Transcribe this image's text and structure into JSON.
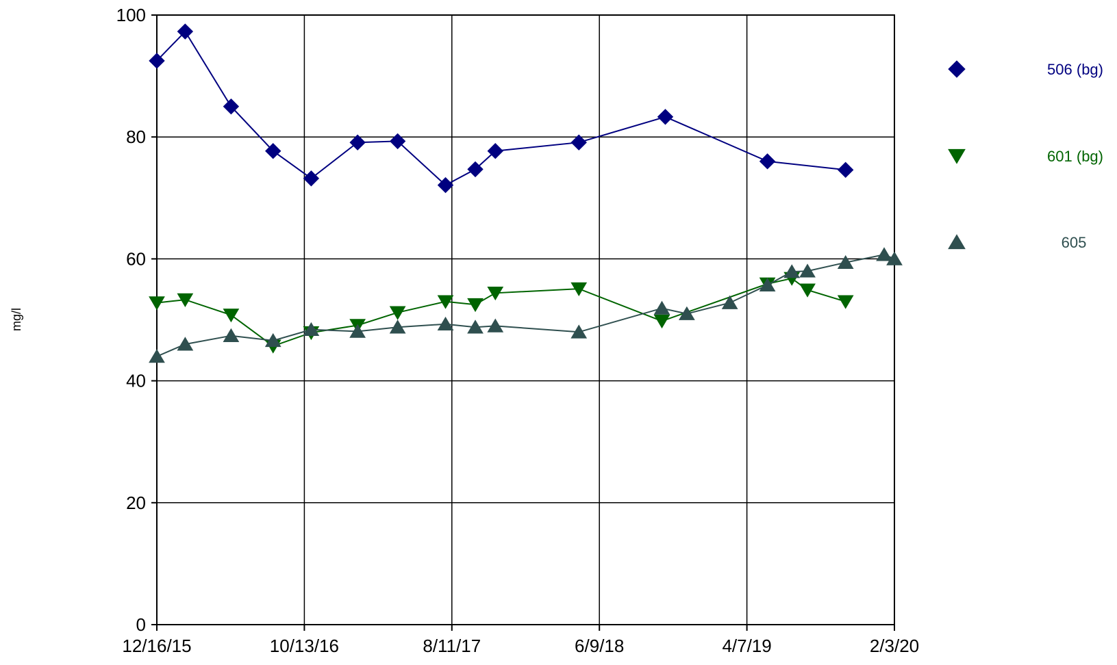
{
  "chart_data": {
    "type": "line",
    "title": "",
    "xlabel": "",
    "ylabel": "mg/l",
    "xlim": [
      "2015-12-16",
      "2020-02-03"
    ],
    "ylim": [
      0,
      100
    ],
    "x_ticks": [
      {
        "date": "2015-12-16",
        "label": "12/16/15"
      },
      {
        "date": "2016-10-13",
        "label": "10/13/16"
      },
      {
        "date": "2017-08-11",
        "label": "8/11/17"
      },
      {
        "date": "2018-06-09",
        "label": "6/9/18"
      },
      {
        "date": "2019-04-07",
        "label": "4/7/19"
      },
      {
        "date": "2020-02-03",
        "label": "2/3/20"
      }
    ],
    "y_ticks": [
      0,
      20,
      40,
      60,
      80,
      100
    ],
    "grid": true,
    "legend_position": "right",
    "series": [
      {
        "name": "506 (bg)",
        "color": "#000080",
        "marker": "diamond",
        "points": [
          {
            "x": "2015-12-16",
            "y": 92.5
          },
          {
            "x": "2016-02-12",
            "y": 97.3
          },
          {
            "x": "2016-05-16",
            "y": 85.0
          },
          {
            "x": "2016-08-10",
            "y": 77.7
          },
          {
            "x": "2016-10-27",
            "y": 73.2
          },
          {
            "x": "2017-01-30",
            "y": 79.1
          },
          {
            "x": "2017-04-22",
            "y": 79.3
          },
          {
            "x": "2017-07-29",
            "y": 72.1
          },
          {
            "x": "2017-09-28",
            "y": 74.7
          },
          {
            "x": "2017-11-08",
            "y": 77.7
          },
          {
            "x": "2018-04-28",
            "y": 79.1
          },
          {
            "x": "2018-10-22",
            "y": 83.3
          },
          {
            "x": "2019-05-19",
            "y": 76.0
          },
          {
            "x": "2019-10-26",
            "y": 74.6
          }
        ]
      },
      {
        "name": "601 (bg)",
        "color": "#006400",
        "marker": "triangle-down",
        "points": [
          {
            "x": "2015-12-16",
            "y": 52.8
          },
          {
            "x": "2016-02-12",
            "y": 53.3
          },
          {
            "x": "2016-05-16",
            "y": 50.8
          },
          {
            "x": "2016-08-10",
            "y": 45.7
          },
          {
            "x": "2016-10-27",
            "y": 47.9
          },
          {
            "x": "2017-01-30",
            "y": 49.1
          },
          {
            "x": "2017-04-22",
            "y": 51.2
          },
          {
            "x": "2017-07-29",
            "y": 53.0
          },
          {
            "x": "2017-09-28",
            "y": 52.5
          },
          {
            "x": "2017-11-08",
            "y": 54.4
          },
          {
            "x": "2018-04-28",
            "y": 55.1
          },
          {
            "x": "2018-10-15",
            "y": 49.8
          },
          {
            "x": "2019-05-19",
            "y": 55.9
          },
          {
            "x": "2019-07-08",
            "y": 56.8
          },
          {
            "x": "2019-08-09",
            "y": 54.9
          },
          {
            "x": "2019-10-26",
            "y": 53.0
          }
        ]
      },
      {
        "name": "605",
        "color": "#2F4F4F",
        "marker": "triangle-up",
        "points": [
          {
            "x": "2015-12-16",
            "y": 44.0
          },
          {
            "x": "2016-02-12",
            "y": 46.0
          },
          {
            "x": "2016-05-16",
            "y": 47.4
          },
          {
            "x": "2016-08-10",
            "y": 46.6
          },
          {
            "x": "2016-10-27",
            "y": 48.4
          },
          {
            "x": "2017-01-30",
            "y": 48.1
          },
          {
            "x": "2017-04-22",
            "y": 48.8
          },
          {
            "x": "2017-07-29",
            "y": 49.3
          },
          {
            "x": "2017-09-28",
            "y": 48.8
          },
          {
            "x": "2017-11-08",
            "y": 49.0
          },
          {
            "x": "2018-04-28",
            "y": 48.0
          },
          {
            "x": "2018-10-15",
            "y": 51.9
          },
          {
            "x": "2018-12-05",
            "y": 51.0
          },
          {
            "x": "2019-03-03",
            "y": 52.8
          },
          {
            "x": "2019-05-19",
            "y": 55.7
          },
          {
            "x": "2019-07-08",
            "y": 57.9
          },
          {
            "x": "2019-08-09",
            "y": 58.0
          },
          {
            "x": "2019-10-26",
            "y": 59.4
          },
          {
            "x": "2020-01-13",
            "y": 60.7
          },
          {
            "x": "2020-02-03",
            "y": 60.0
          }
        ]
      }
    ]
  }
}
